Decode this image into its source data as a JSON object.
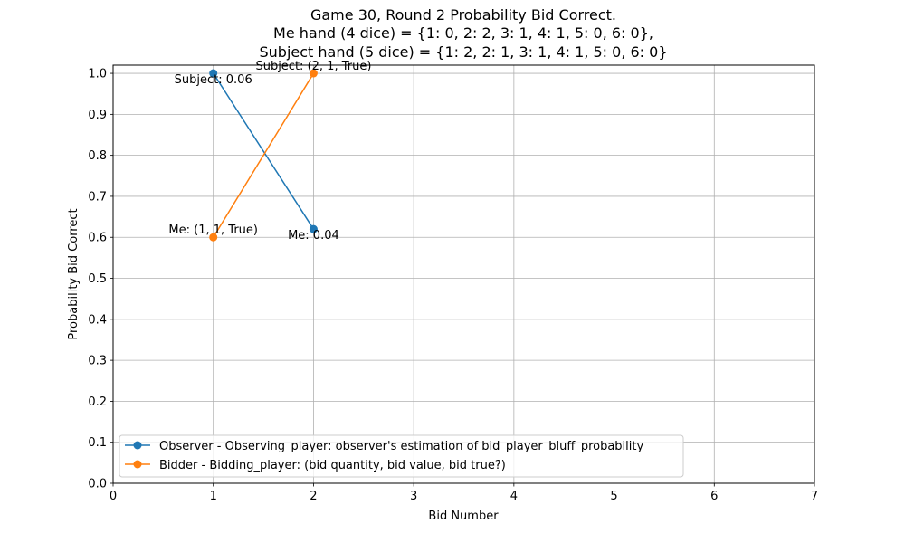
{
  "chart_data": {
    "type": "line",
    "title": [
      "Game 30, Round 2 Probability Bid Correct.",
      "Me hand (4 dice) = {1: 0, 2: 2, 3: 1, 4: 1, 5: 0, 6: 0},",
      "Subject hand (5 dice) = {1: 2, 2: 1, 3: 1, 4: 1, 5: 0, 6: 0}"
    ],
    "xlabel": "Bid Number",
    "ylabel": "Probability Bid Correct",
    "xlim": [
      0,
      7
    ],
    "ylim": [
      0.0,
      1.02
    ],
    "xticks": [
      0,
      1,
      2,
      3,
      4,
      5,
      6,
      7
    ],
    "xtick_labels": [
      "0",
      "1",
      "2",
      "3",
      "4",
      "5",
      "6",
      "7"
    ],
    "yticks": [
      0.0,
      0.1,
      0.2,
      0.3,
      0.4,
      0.5,
      0.6,
      0.7,
      0.8,
      0.9,
      1.0
    ],
    "ytick_labels": [
      "0.0",
      "0.1",
      "0.2",
      "0.3",
      "0.4",
      "0.5",
      "0.6",
      "0.7",
      "0.8",
      "0.9",
      "1.0"
    ],
    "grid": true,
    "legend_position": "lower-left",
    "series": [
      {
        "name": "Observer - Observing_player: observer's estimation of bid_player_bluff_probability",
        "color": "#1f77b4",
        "marker": "circle",
        "x": [
          1,
          2
        ],
        "y": [
          1.0,
          0.62
        ]
      },
      {
        "name": "Bidder -  Bidding_player: (bid quantity, bid value, bid true?)",
        "color": "#ff7f0e",
        "marker": "circle",
        "x": [
          1,
          2
        ],
        "y": [
          0.6,
          1.0
        ]
      }
    ],
    "annotations": [
      {
        "text": "Subject: 0.06",
        "x": 1,
        "y": 1.0,
        "anchor": "below-center"
      },
      {
        "text": "Me: 0.04",
        "x": 2,
        "y": 0.62,
        "anchor": "below-center"
      },
      {
        "text": "Me: (1, 1, True)",
        "x": 1,
        "y": 0.6,
        "anchor": "above-center"
      },
      {
        "text": "Subject: (2, 1, True)",
        "x": 2,
        "y": 1.0,
        "anchor": "above-center"
      }
    ]
  }
}
